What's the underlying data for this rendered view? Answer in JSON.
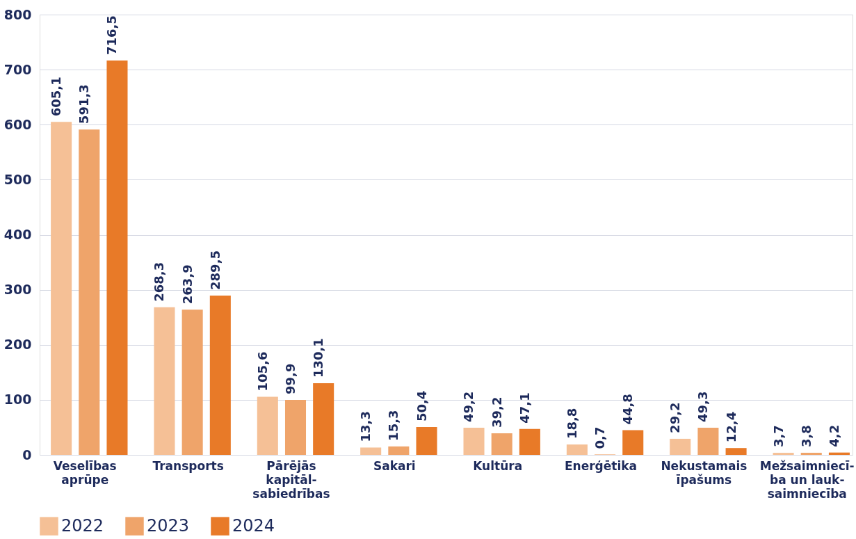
{
  "chart_data": {
    "type": "bar",
    "categories": [
      "Veselības\naprūpe",
      "Transports",
      "Pārējās\nkapitāl-\nsabiedrības",
      "Sakari",
      "Kultūra",
      "Enerģētika",
      "Nekustamais\nīpašums",
      "Mežsaimniecī-\nba un lauk-\nsaimniecība"
    ],
    "series": [
      {
        "name": "2022",
        "color": "#f5c096",
        "values": [
          605.1,
          268.3,
          105.6,
          13.3,
          49.2,
          18.8,
          29.2,
          3.7
        ],
        "value_labels": [
          "605,1",
          "268,3",
          "105,6",
          "13,3",
          "49,2",
          "18,8",
          "29,2",
          "3,7"
        ]
      },
      {
        "name": "2023",
        "color": "#efa46a",
        "values": [
          591.3,
          263.9,
          99.9,
          15.3,
          39.2,
          0.7,
          49.3,
          3.8
        ],
        "value_labels": [
          "591,3",
          "263,9",
          "99,9",
          "15,3",
          "39,2",
          "0,7",
          "49,3",
          "3,8"
        ]
      },
      {
        "name": "2024",
        "color": "#e87a28",
        "values": [
          716.5,
          289.5,
          130.1,
          50.4,
          47.1,
          44.8,
          12.4,
          4.2
        ],
        "value_labels": [
          "716,5",
          "289,5",
          "130,1",
          "50,4",
          "47,1",
          "44,8",
          "12,4",
          "4,2"
        ]
      }
    ],
    "ylim": [
      0,
      800
    ],
    "yticks": [
      0,
      100,
      200,
      300,
      400,
      500,
      600,
      700,
      800
    ],
    "grid": "y",
    "legend": "bottom left"
  }
}
